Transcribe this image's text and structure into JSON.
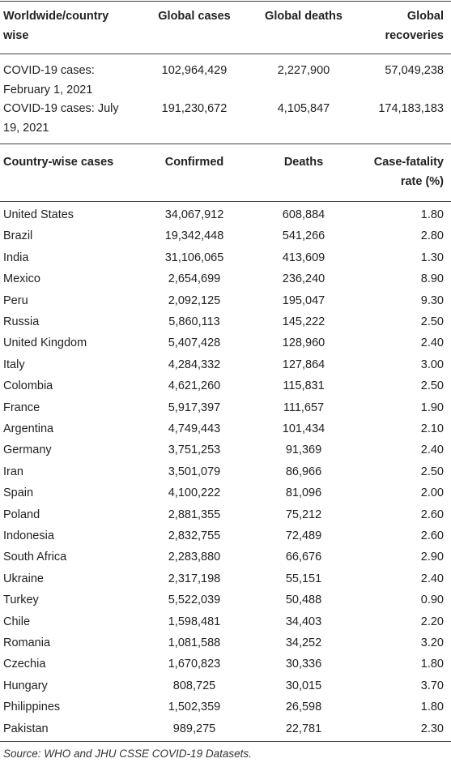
{
  "table1": {
    "header": [
      "Worldwide/country wise",
      "Global cases",
      "Global deaths",
      "Global recoveries"
    ],
    "rows": [
      [
        "COVID-19 cases: February 1, 2021",
        "102,964,429",
        "2,227,900",
        "57,049,238"
      ],
      [
        "COVID-19 cases: July 19, 2021",
        "191,230,672",
        "4,105,847",
        "174,183,183"
      ]
    ]
  },
  "table2": {
    "header": [
      "Country-wise cases",
      "Confirmed",
      "Deaths",
      "Case-fatality rate (%)"
    ],
    "rows": [
      [
        "United States",
        "34,067,912",
        "608,884",
        "1.80"
      ],
      [
        "Brazil",
        "19,342,448",
        "541,266",
        "2.80"
      ],
      [
        "India",
        "31,106,065",
        "413,609",
        "1.30"
      ],
      [
        "Mexico",
        "2,654,699",
        "236,240",
        "8.90"
      ],
      [
        "Peru",
        "2,092,125",
        "195,047",
        "9.30"
      ],
      [
        "Russia",
        "5,860,113",
        "145,222",
        "2.50"
      ],
      [
        "United Kingdom",
        "5,407,428",
        "128,960",
        "2.40"
      ],
      [
        "Italy",
        "4,284,332",
        "127,864",
        "3.00"
      ],
      [
        "Colombia",
        "4,621,260",
        "115,831",
        "2.50"
      ],
      [
        "France",
        "5,917,397",
        "111,657",
        "1.90"
      ],
      [
        "Argentina",
        "4,749,443",
        "101,434",
        "2.10"
      ],
      [
        "Germany",
        "3,751,253",
        "91,369",
        "2.40"
      ],
      [
        "Iran",
        "3,501,079",
        "86,966",
        "2.50"
      ],
      [
        "Spain",
        "4,100,222",
        "81,096",
        "2.00"
      ],
      [
        "Poland",
        "2,881,355",
        "75,212",
        "2.60"
      ],
      [
        "Indonesia",
        "2,832,755",
        "72,489",
        "2.60"
      ],
      [
        "South Africa",
        "2,283,880",
        "66,676",
        "2.90"
      ],
      [
        "Ukraine",
        "2,317,198",
        "55,151",
        "2.40"
      ],
      [
        "Turkey",
        "5,522,039",
        "50,488",
        "0.90"
      ],
      [
        "Chile",
        "1,598,481",
        "34,403",
        "2.20"
      ],
      [
        "Romania",
        "1,081,588",
        "34,252",
        "3.20"
      ],
      [
        "Czechia",
        "1,670,823",
        "30,336",
        "1.80"
      ],
      [
        "Hungary",
        "808,725",
        "30,015",
        "3.70"
      ],
      [
        "Philippines",
        "1,502,359",
        "26,598",
        "1.80"
      ],
      [
        "Pakistan",
        "989,275",
        "22,781",
        "2.30"
      ]
    ]
  },
  "source": "Source: WHO and JHU CSSE COVID-19 Datasets."
}
